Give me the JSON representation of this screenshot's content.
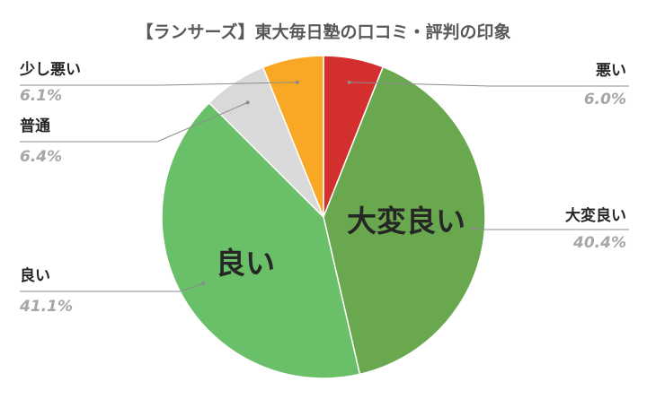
{
  "chart_data": {
    "type": "pie",
    "title": "【ランサーズ】東大毎日塾の口コミ・評判の印象",
    "start_angle_deg": 0,
    "direction": "clockwise",
    "slices": [
      {
        "label": "悪い",
        "value": 6.0,
        "value_label": "6.0%",
        "color": "#d32f2f",
        "inner_label": "",
        "side": "right"
      },
      {
        "label": "大変良い",
        "value": 40.4,
        "value_label": "40.4%",
        "color": "#6aa84f",
        "inner_label": "大変良い",
        "side": "right"
      },
      {
        "label": "良い",
        "value": 41.1,
        "value_label": "41.1%",
        "color": "#6abf69",
        "inner_label": "良い",
        "side": "left"
      },
      {
        "label": "普通",
        "value": 6.4,
        "value_label": "6.4%",
        "color": "#d9d9d9",
        "inner_label": "",
        "side": "left"
      },
      {
        "label": "少し悪い",
        "value": 6.1,
        "value_label": "6.1%",
        "color": "#f9a825",
        "inner_label": "",
        "side": "left"
      }
    ]
  }
}
